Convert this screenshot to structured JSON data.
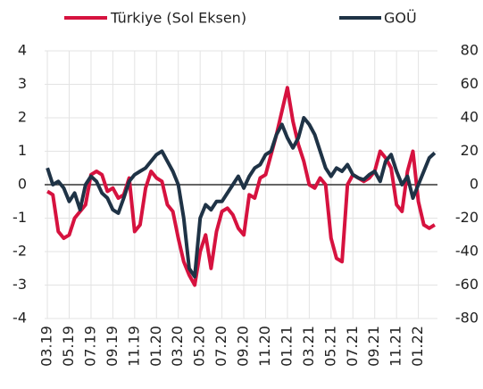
{
  "chart_data": {
    "type": "line",
    "categories": [
      "03.19",
      null,
      null,
      null,
      "05.19",
      null,
      null,
      null,
      "07.19",
      null,
      null,
      null,
      "09.19",
      null,
      null,
      null,
      "11.19",
      null,
      null,
      null,
      "01.20",
      null,
      null,
      null,
      "03.20",
      null,
      null,
      null,
      "05.20",
      null,
      null,
      null,
      "07.20",
      null,
      null,
      null,
      "09.20",
      null,
      null,
      null,
      "11.20",
      null,
      null,
      null,
      "01.21",
      null,
      null,
      null,
      "03.21",
      null,
      null,
      null,
      "05.21",
      null,
      null,
      null,
      "07.21",
      null,
      null,
      null,
      "09.21",
      null,
      null,
      null,
      "11.21",
      null,
      null,
      null,
      "01.22",
      null,
      null,
      null
    ],
    "series": [
      {
        "name": "Türkiye (Sol Eksen)",
        "color": "#d6123f",
        "values": [
          -0.2,
          -0.3,
          -1.4,
          -1.6,
          -1.5,
          -1.0,
          -0.8,
          -0.6,
          0.3,
          0.4,
          0.3,
          -0.2,
          -0.1,
          -0.4,
          -0.3,
          0.2,
          -1.4,
          -1.2,
          -0.1,
          0.4,
          0.2,
          0.1,
          -0.6,
          -0.8,
          -1.6,
          -2.3,
          -2.7,
          -3.0,
          -2.0,
          -1.5,
          -2.5,
          -1.4,
          -0.8,
          -0.7,
          -0.9,
          -1.3,
          -1.5,
          -0.3,
          -0.4,
          0.2,
          0.3,
          0.9,
          1.5,
          2.2,
          2.9,
          1.9,
          1.2,
          0.7,
          0.0,
          -0.1,
          0.2,
          0.0,
          -1.6,
          -2.2,
          -2.3,
          0.0,
          0.3,
          0.2,
          0.1,
          0.2,
          0.4,
          1.0,
          0.8,
          0.5,
          -0.6,
          -0.8,
          0.4,
          1.0,
          -0.5,
          -1.2,
          -1.3,
          -1.2
        ]
      },
      {
        "name": "GOÜ",
        "color": "#1f3346",
        "axis": "y2",
        "values": [
          10,
          0,
          2,
          -2,
          -10,
          -5,
          -15,
          0,
          5,
          2,
          -5,
          -8,
          -15,
          -17,
          -8,
          2,
          6,
          8,
          10,
          14,
          18,
          20,
          14,
          8,
          0,
          -20,
          -50,
          -55,
          -20,
          -12,
          -15,
          -10,
          -10,
          -5,
          0,
          5,
          -2,
          5,
          10,
          12,
          18,
          20,
          30,
          36,
          28,
          22,
          28,
          40,
          36,
          30,
          20,
          10,
          5,
          10,
          8,
          12,
          6,
          4,
          3,
          6,
          8,
          2,
          14,
          18,
          8,
          0,
          5,
          -8,
          0,
          8,
          16,
          19
        ]
      }
    ],
    "ylim": [
      -4,
      4
    ],
    "yticks": [
      -4,
      -3,
      -2,
      -1,
      0,
      1,
      2,
      3,
      4
    ],
    "y2lim": [
      -80,
      80
    ],
    "y2ticks": [
      -80,
      -60,
      -40,
      -20,
      0,
      20,
      40,
      60,
      80
    ],
    "grid": true
  }
}
